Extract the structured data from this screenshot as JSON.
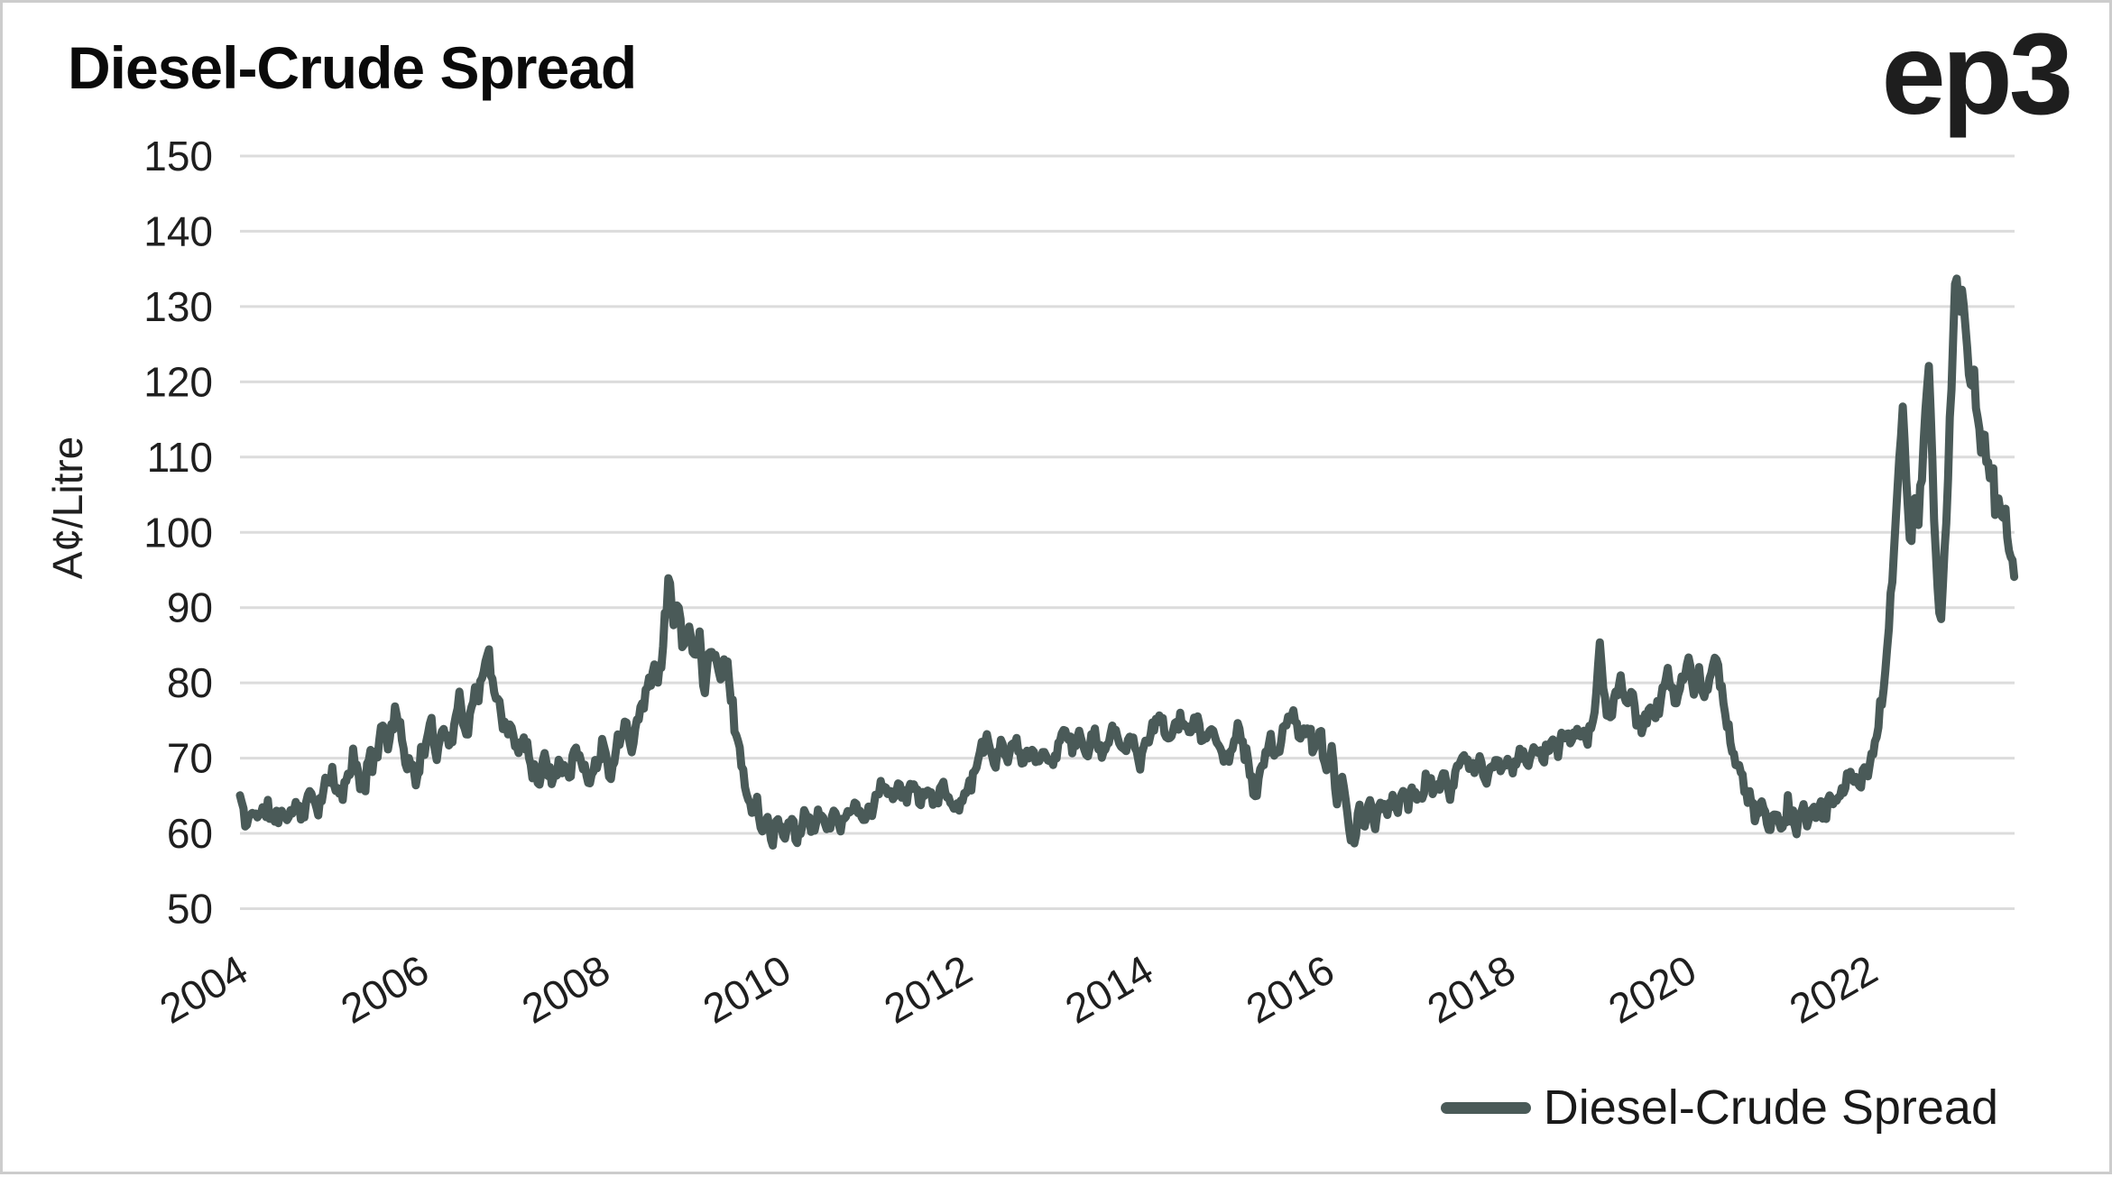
{
  "header": {
    "title": "Diesel-Crude Spread",
    "logo_text": "ep3"
  },
  "colors": {
    "line": "#4a5a58",
    "grid": "#dcdcdc",
    "tick_text": "#1f1f1f",
    "title_text": "#0a0a0a",
    "background": "#ffffff",
    "frame_border": "#cccccc"
  },
  "chart_data": {
    "type": "line",
    "title": "Diesel-Crude Spread",
    "xlabel": "",
    "ylabel": "A¢/Litre",
    "ylim": [
      50,
      150
    ],
    "yticks": [
      150,
      140,
      130,
      120,
      110,
      100,
      90,
      80,
      70,
      60,
      50
    ],
    "xticks": [
      "2004",
      "2006",
      "2008",
      "2010",
      "2012",
      "2014",
      "2016",
      "2018",
      "2020",
      "2022"
    ],
    "x_range_years": [
      2004.0,
      2023.6
    ],
    "grid": "horizontal-only",
    "legend": {
      "position": "bottom-right",
      "entries": [
        "Diesel-Crude Spread"
      ]
    },
    "series": [
      {
        "name": "Diesel-Crude Spread",
        "color": "#4a5a58",
        "unit": "A¢/Litre",
        "cadence": "weekly, approximated from anchor points read off the chart",
        "noise_amplitude_range": [
          1.4,
          2.4
        ],
        "anchors_year_value": [
          [
            2004.0,
            65
          ],
          [
            2004.07,
            60.8
          ],
          [
            2004.15,
            63.5
          ],
          [
            2004.22,
            62
          ],
          [
            2004.3,
            63.5
          ],
          [
            2004.38,
            61.5
          ],
          [
            2004.46,
            63
          ],
          [
            2004.54,
            62
          ],
          [
            2004.62,
            64
          ],
          [
            2004.7,
            62.5
          ],
          [
            2004.78,
            65.5
          ],
          [
            2004.86,
            63.5
          ],
          [
            2004.94,
            66
          ],
          [
            2005.02,
            67.5
          ],
          [
            2005.1,
            64.5
          ],
          [
            2005.18,
            67.5
          ],
          [
            2005.26,
            70
          ],
          [
            2005.34,
            66
          ],
          [
            2005.42,
            68.5
          ],
          [
            2005.5,
            71
          ],
          [
            2005.58,
            75
          ],
          [
            2005.64,
            71.5
          ],
          [
            2005.71,
            77
          ],
          [
            2005.78,
            73
          ],
          [
            2005.86,
            69
          ],
          [
            2005.94,
            67.5
          ],
          [
            2006.02,
            70.5
          ],
          [
            2006.1,
            74
          ],
          [
            2006.18,
            71
          ],
          [
            2006.26,
            74.5
          ],
          [
            2006.34,
            71.5
          ],
          [
            2006.42,
            78.5
          ],
          [
            2006.5,
            73.5
          ],
          [
            2006.58,
            77.5
          ],
          [
            2006.66,
            80
          ],
          [
            2006.74,
            83.5
          ],
          [
            2006.82,
            78.5
          ],
          [
            2006.9,
            75.5
          ],
          [
            2006.98,
            73.5
          ],
          [
            2007.06,
            71
          ],
          [
            2007.14,
            73
          ],
          [
            2007.22,
            69.5
          ],
          [
            2007.3,
            67
          ],
          [
            2007.38,
            70
          ],
          [
            2007.46,
            67.5
          ],
          [
            2007.54,
            70.5
          ],
          [
            2007.62,
            68
          ],
          [
            2007.7,
            71
          ],
          [
            2007.78,
            69
          ],
          [
            2007.86,
            67
          ],
          [
            2007.94,
            69.5
          ],
          [
            2008.02,
            71.5
          ],
          [
            2008.1,
            68.5
          ],
          [
            2008.18,
            72
          ],
          [
            2008.26,
            75.5
          ],
          [
            2008.34,
            72
          ],
          [
            2008.42,
            76
          ],
          [
            2008.5,
            79.5
          ],
          [
            2008.56,
            82.5
          ],
          [
            2008.62,
            79.5
          ],
          [
            2008.68,
            86
          ],
          [
            2008.74,
            94.5
          ],
          [
            2008.79,
            87.5
          ],
          [
            2008.84,
            91
          ],
          [
            2008.9,
            84.5
          ],
          [
            2008.96,
            88
          ],
          [
            2009.02,
            83.5
          ],
          [
            2009.07,
            86.5
          ],
          [
            2009.13,
            80
          ],
          [
            2009.19,
            83.5
          ],
          [
            2009.25,
            85
          ],
          [
            2009.31,
            79.5
          ],
          [
            2009.36,
            84
          ],
          [
            2009.42,
            78.5
          ],
          [
            2009.48,
            73.5
          ],
          [
            2009.54,
            69.5
          ],
          [
            2009.6,
            65.5
          ],
          [
            2009.66,
            62.5
          ],
          [
            2009.71,
            65
          ],
          [
            2009.76,
            59.5
          ],
          [
            2009.82,
            62.5
          ],
          [
            2009.87,
            58.5
          ],
          [
            2009.93,
            62
          ],
          [
            2010.0,
            59.5
          ],
          [
            2010.08,
            62.5
          ],
          [
            2010.16,
            59
          ],
          [
            2010.24,
            63
          ],
          [
            2010.32,
            60.5
          ],
          [
            2010.4,
            62.5
          ],
          [
            2010.48,
            60.5
          ],
          [
            2010.56,
            63
          ],
          [
            2010.64,
            60.5
          ],
          [
            2010.72,
            62.5
          ],
          [
            2010.8,
            64
          ],
          [
            2010.88,
            61.5
          ],
          [
            2010.96,
            63
          ],
          [
            2011.04,
            65
          ],
          [
            2011.12,
            67
          ],
          [
            2011.2,
            64
          ],
          [
            2011.28,
            66.5
          ],
          [
            2011.36,
            64.5
          ],
          [
            2011.44,
            67
          ],
          [
            2011.52,
            64.5
          ],
          [
            2011.6,
            66.5
          ],
          [
            2011.68,
            64
          ],
          [
            2011.76,
            66
          ],
          [
            2011.84,
            64.5
          ],
          [
            2011.92,
            63.5
          ],
          [
            2012.0,
            65
          ],
          [
            2012.08,
            67
          ],
          [
            2012.16,
            69.5
          ],
          [
            2012.24,
            73
          ],
          [
            2012.32,
            69
          ],
          [
            2012.4,
            72
          ],
          [
            2012.48,
            69.5
          ],
          [
            2012.56,
            72
          ],
          [
            2012.64,
            69
          ],
          [
            2012.72,
            71.5
          ],
          [
            2012.8,
            68.5
          ],
          [
            2012.88,
            71
          ],
          [
            2012.96,
            69
          ],
          [
            2013.04,
            71.5
          ],
          [
            2013.12,
            74
          ],
          [
            2013.2,
            71
          ],
          [
            2013.28,
            73.5
          ],
          [
            2013.36,
            70.5
          ],
          [
            2013.44,
            73
          ],
          [
            2013.52,
            70.5
          ],
          [
            2013.6,
            72.5
          ],
          [
            2013.68,
            74.5
          ],
          [
            2013.76,
            71
          ],
          [
            2013.84,
            73
          ],
          [
            2013.92,
            69.5
          ],
          [
            2014.0,
            71.5
          ],
          [
            2014.08,
            73.5
          ],
          [
            2014.16,
            75.5
          ],
          [
            2014.24,
            72
          ],
          [
            2014.32,
            74.5
          ],
          [
            2014.4,
            76
          ],
          [
            2014.48,
            73
          ],
          [
            2014.56,
            75
          ],
          [
            2014.64,
            72.5
          ],
          [
            2014.72,
            74.5
          ],
          [
            2014.8,
            71.5
          ],
          [
            2014.88,
            69.5
          ],
          [
            2014.96,
            71.5
          ],
          [
            2015.04,
            74.5
          ],
          [
            2015.1,
            71
          ],
          [
            2015.16,
            67.5
          ],
          [
            2015.22,
            63.5
          ],
          [
            2015.3,
            70
          ],
          [
            2015.38,
            72.5
          ],
          [
            2015.46,
            70
          ],
          [
            2015.54,
            74.5
          ],
          [
            2015.62,
            76.5
          ],
          [
            2015.7,
            72
          ],
          [
            2015.78,
            74.5
          ],
          [
            2015.86,
            71
          ],
          [
            2015.94,
            73
          ],
          [
            2016.0,
            68
          ],
          [
            2016.06,
            71.5
          ],
          [
            2016.12,
            64.5
          ],
          [
            2016.18,
            67.5
          ],
          [
            2016.24,
            61
          ],
          [
            2016.3,
            58.5
          ],
          [
            2016.36,
            63.5
          ],
          [
            2016.42,
            60.5
          ],
          [
            2016.48,
            64.5
          ],
          [
            2016.54,
            61
          ],
          [
            2016.6,
            65
          ],
          [
            2016.66,
            62
          ],
          [
            2016.72,
            65.5
          ],
          [
            2016.78,
            62.5
          ],
          [
            2016.84,
            66
          ],
          [
            2016.9,
            63.5
          ],
          [
            2016.96,
            66.5
          ],
          [
            2017.04,
            64.5
          ],
          [
            2017.12,
            67.5
          ],
          [
            2017.2,
            64.5
          ],
          [
            2017.28,
            68
          ],
          [
            2017.36,
            65.5
          ],
          [
            2017.44,
            68.5
          ],
          [
            2017.52,
            70.5
          ],
          [
            2017.6,
            67.5
          ],
          [
            2017.68,
            69.5
          ],
          [
            2017.76,
            67.5
          ],
          [
            2017.84,
            69.5
          ],
          [
            2017.92,
            68
          ],
          [
            2018.0,
            70
          ],
          [
            2018.08,
            68.5
          ],
          [
            2018.16,
            70.5
          ],
          [
            2018.24,
            69.5
          ],
          [
            2018.32,
            71.5
          ],
          [
            2018.4,
            70
          ],
          [
            2018.48,
            72.5
          ],
          [
            2018.56,
            71
          ],
          [
            2018.64,
            73.5
          ],
          [
            2018.72,
            72
          ],
          [
            2018.8,
            74
          ],
          [
            2018.88,
            72.5
          ],
          [
            2018.96,
            76
          ],
          [
            2019.02,
            85
          ],
          [
            2019.07,
            79
          ],
          [
            2019.13,
            74.5
          ],
          [
            2019.19,
            78
          ],
          [
            2019.25,
            81
          ],
          [
            2019.31,
            77
          ],
          [
            2019.37,
            79.5
          ],
          [
            2019.43,
            75
          ],
          [
            2019.49,
            72.5
          ],
          [
            2019.55,
            77
          ],
          [
            2019.62,
            74.5
          ],
          [
            2019.7,
            78.5
          ],
          [
            2019.78,
            81.5
          ],
          [
            2019.86,
            78
          ],
          [
            2019.93,
            80
          ],
          [
            2020.0,
            82.5
          ],
          [
            2020.06,
            78.5
          ],
          [
            2020.12,
            81
          ],
          [
            2020.18,
            77.5
          ],
          [
            2020.24,
            80.5
          ],
          [
            2020.3,
            85.5
          ],
          [
            2020.36,
            78.5
          ],
          [
            2020.43,
            74
          ],
          [
            2020.5,
            70.5
          ],
          [
            2020.58,
            67.5
          ],
          [
            2020.66,
            64.5
          ],
          [
            2020.74,
            62
          ],
          [
            2020.81,
            64.5
          ],
          [
            2020.88,
            61
          ],
          [
            2020.95,
            63
          ],
          [
            2021.02,
            61
          ],
          [
            2021.1,
            63.5
          ],
          [
            2021.18,
            60.8
          ],
          [
            2021.26,
            63
          ],
          [
            2021.34,
            61.8
          ],
          [
            2021.42,
            64
          ],
          [
            2021.5,
            62.8
          ],
          [
            2021.58,
            65.5
          ],
          [
            2021.66,
            64
          ],
          [
            2021.74,
            66.5
          ],
          [
            2021.82,
            68
          ],
          [
            2021.9,
            66.5
          ],
          [
            2021.97,
            68.5
          ],
          [
            2022.0,
            69
          ],
          [
            2022.06,
            72
          ],
          [
            2022.12,
            76
          ],
          [
            2022.2,
            84
          ],
          [
            2022.37,
            118
          ],
          [
            2022.41,
            104
          ],
          [
            2022.45,
            98
          ],
          [
            2022.49,
            104.5
          ],
          [
            2022.53,
            100
          ],
          [
            2022.59,
            111
          ],
          [
            2022.65,
            125
          ],
          [
            2022.7,
            107
          ],
          [
            2022.74,
            92
          ],
          [
            2022.79,
            89
          ],
          [
            2022.84,
            101
          ],
          [
            2022.89,
            115
          ],
          [
            2022.95,
            136
          ],
          [
            2022.99,
            129
          ],
          [
            2023.03,
            132
          ],
          [
            2023.07,
            125
          ],
          [
            2023.11,
            119
          ],
          [
            2023.15,
            121.5
          ],
          [
            2023.19,
            115
          ],
          [
            2023.23,
            111
          ],
          [
            2023.27,
            113
          ],
          [
            2023.31,
            107
          ],
          [
            2023.35,
            109
          ],
          [
            2023.39,
            103
          ],
          [
            2023.43,
            105
          ],
          [
            2023.47,
            100
          ],
          [
            2023.51,
            102
          ],
          [
            2023.55,
            97
          ],
          [
            2023.6,
            95.5
          ]
        ]
      }
    ]
  }
}
